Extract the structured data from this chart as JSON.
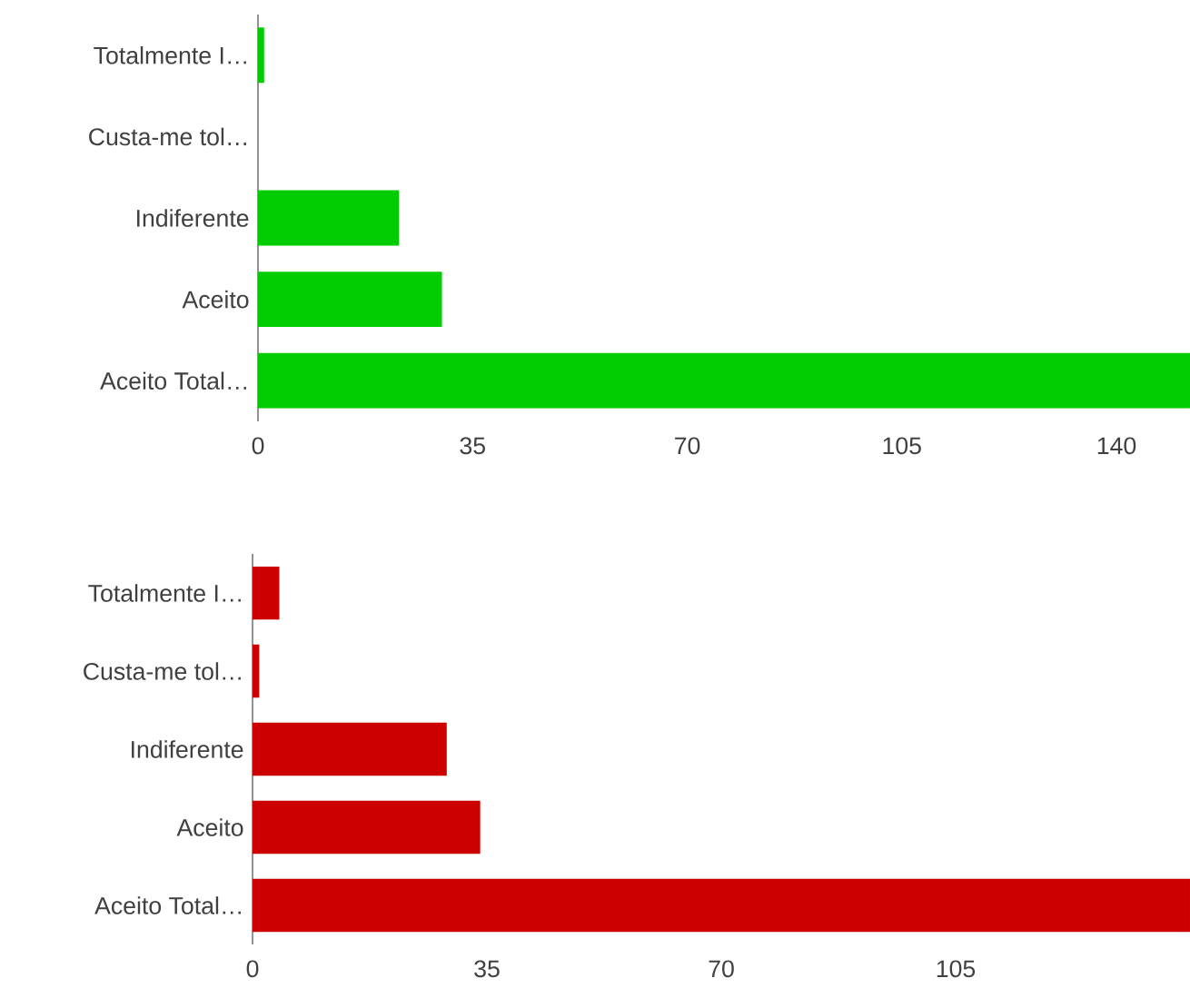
{
  "chart_data": [
    {
      "type": "bar",
      "orientation": "horizontal",
      "categories": [
        "Totalmente I…",
        "Custa-me tol…",
        "Indiferente",
        "Aceito",
        "Aceito Total…"
      ],
      "values": [
        1,
        0,
        23,
        30,
        152
      ],
      "color": "#00cc00",
      "xlim": [
        0,
        152
      ],
      "xticks": [
        0,
        35,
        70,
        105,
        140
      ]
    },
    {
      "type": "bar",
      "orientation": "horizontal",
      "categories": [
        "Totalmente I…",
        "Custa-me tol…",
        "Indiferente",
        "Aceito",
        "Aceito Total…"
      ],
      "values": [
        4,
        1,
        29,
        34,
        140
      ],
      "color": "#cc0000",
      "xlim": [
        0,
        140
      ],
      "xticks": [
        0,
        35,
        70,
        105
      ]
    }
  ]
}
